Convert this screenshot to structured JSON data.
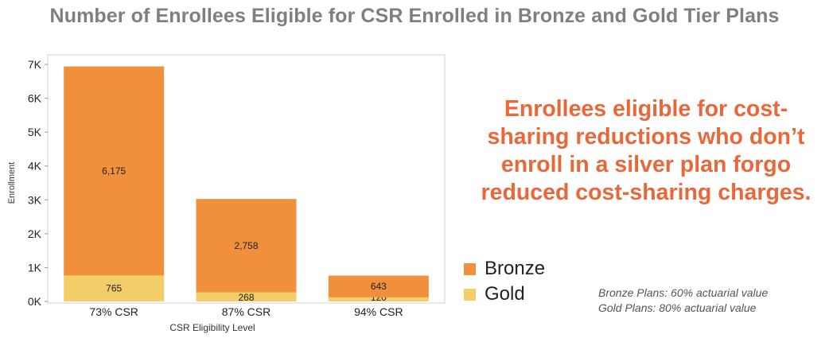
{
  "title": "Number of Enrollees Eligible for CSR Enrolled in Bronze and Gold Tier Plans",
  "callout": "Enrollees eligible for cost-sharing reductions who don’t enroll in a silver plan forgo reduced cost-sharing charges.",
  "notes": {
    "bronze": "Bronze Plans: 60% actuarial value",
    "gold": "Gold Plans: 80% actuarial value"
  },
  "colors": {
    "bronze": "#f0903c",
    "gold": "#f3cd67",
    "callout": "#e8683a",
    "title": "#7f7f7f"
  },
  "chart_data": {
    "type": "bar",
    "stacked": true,
    "categories": [
      "73% CSR",
      "87% CSR",
      "94% CSR"
    ],
    "series": [
      {
        "name": "Gold",
        "values": [
          765,
          268,
          120
        ],
        "labels": [
          "765",
          "268",
          "120"
        ]
      },
      {
        "name": "Bronze",
        "values": [
          6175,
          2758,
          643
        ],
        "labels": [
          "6,175",
          "2,758",
          "643"
        ]
      }
    ],
    "xlabel": "CSR Eligibility Level",
    "ylabel": "Enrollment",
    "ylim": [
      0,
      7000
    ],
    "yticks": [
      0,
      1000,
      2000,
      3000,
      4000,
      5000,
      6000,
      7000
    ],
    "ytick_labels": [
      "0K",
      "1K",
      "2K",
      "3K",
      "4K",
      "5K",
      "6K",
      "7K"
    ],
    "legend": [
      {
        "name": "Bronze",
        "color": "#f0903c"
      },
      {
        "name": "Gold",
        "color": "#f3cd67"
      }
    ],
    "legend_position": "right"
  }
}
